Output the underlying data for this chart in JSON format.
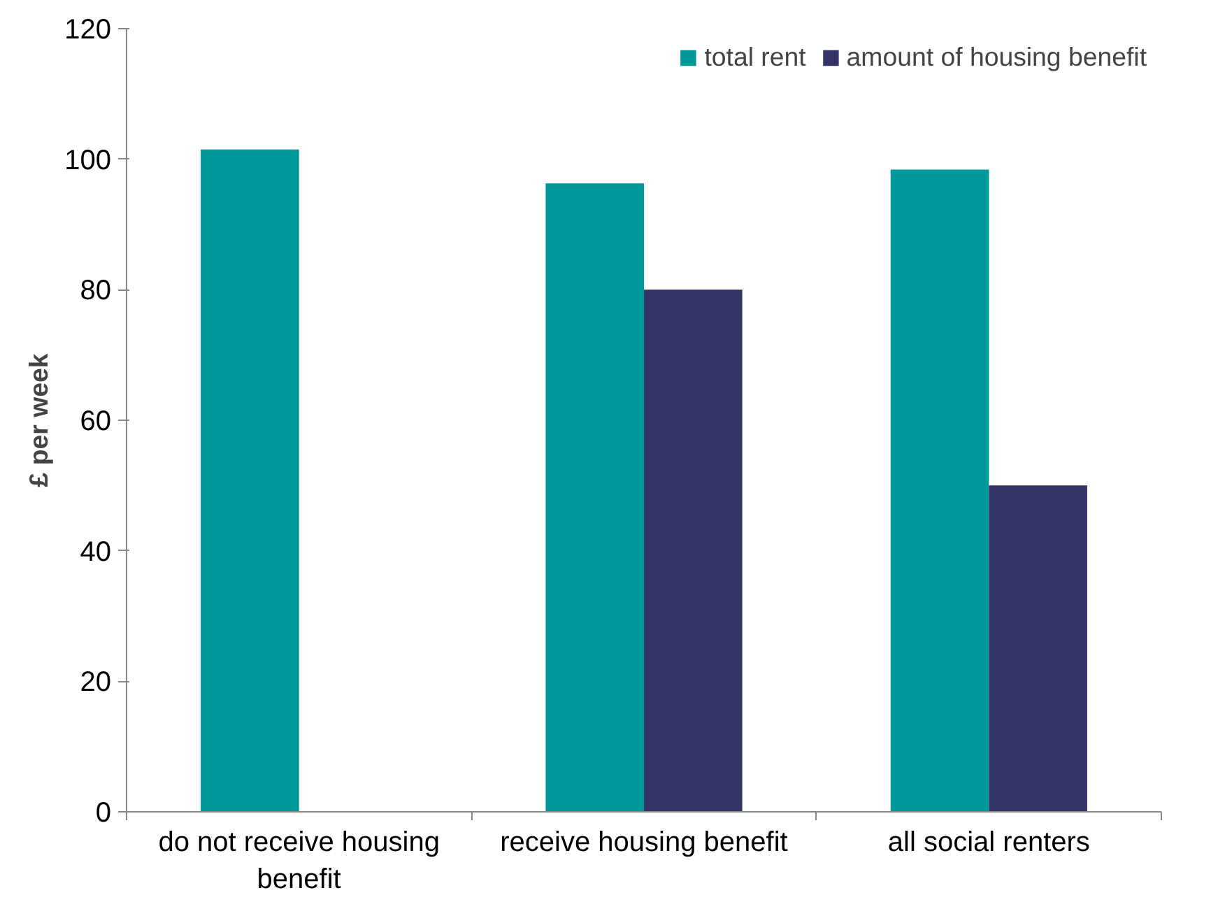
{
  "chart_data": {
    "type": "bar",
    "ylabel": "£ per week",
    "categories": [
      "do not receive housing benefit",
      "receive housing benefit",
      "all social renters"
    ],
    "series": [
      {
        "name": "total rent",
        "color": "#009999",
        "values": [
          101.5,
          96.3,
          98.4
        ]
      },
      {
        "name": "amount of housing benefit",
        "color": "#333366",
        "values": [
          null,
          80,
          50
        ]
      }
    ],
    "ylim": [
      0,
      120
    ],
    "yticks": [
      0,
      20,
      40,
      60,
      80,
      100,
      120
    ],
    "legend": "top right",
    "grid": false
  }
}
